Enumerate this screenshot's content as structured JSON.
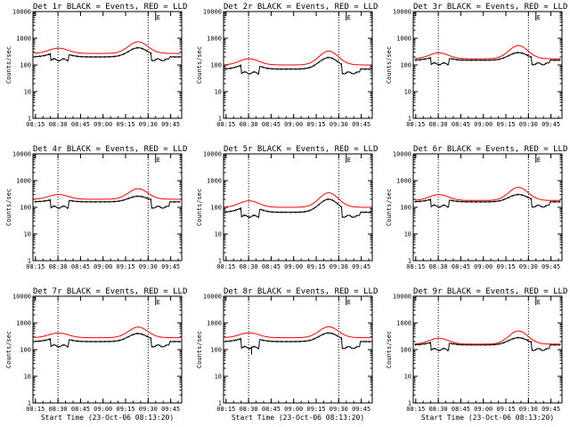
{
  "figure": {
    "background": "#ffffff",
    "frame_color": "#000000"
  },
  "chart_data": [
    {
      "type": "line",
      "title": "Det 1r BLACK = Events, RED = LLD",
      "xlabel": "",
      "ylabel": "Counts/sec",
      "x_tick_labels": [
        "08:15",
        "08:30",
        "08:45",
        "09:00",
        "09:15",
        "09:30",
        "09:45"
      ],
      "x_range_minutes": [
        0,
        99
      ],
      "ylim": [
        1,
        10000
      ],
      "y_scale": "log",
      "y_tick_labels": [
        "1",
        "10",
        "100",
        "1000",
        "10000"
      ],
      "marker_label": "E",
      "dotted_lines_at": [
        "08:30",
        "09:30"
      ],
      "series": [
        {
          "color": "#000000",
          "profile": "events",
          "lo": 200,
          "hi": 440,
          "gaps": [
            [
              "08:25",
              "08:37"
            ],
            [
              "09:32",
              "09:44"
            ]
          ],
          "gap_value": 170
        },
        {
          "color": "#ff0000",
          "profile": "lld",
          "lo": 270,
          "hi": 740
        }
      ]
    },
    {
      "type": "line",
      "title": "Det 2r BLACK = Events, RED = LLD",
      "xlabel": "",
      "ylabel": "Counts/sec",
      "x_tick_labels": [
        "08:15",
        "08:30",
        "08:45",
        "09:00",
        "09:15",
        "09:30",
        "09:45"
      ],
      "x_range_minutes": [
        0,
        99
      ],
      "ylim": [
        1,
        10000
      ],
      "y_scale": "log",
      "y_tick_labels": [
        "1",
        "10",
        "100",
        "1000",
        "10000"
      ],
      "marker_label": "E",
      "dotted_lines_at": [
        "08:30",
        "09:30"
      ],
      "series": [
        {
          "color": "#000000",
          "profile": "events",
          "lo": 70,
          "hi": 190,
          "gaps": [
            [
              "08:25",
              "08:37"
            ],
            [
              "09:32",
              "09:44"
            ]
          ],
          "gap_value": 55
        },
        {
          "color": "#ff0000",
          "profile": "lld",
          "lo": 100,
          "hi": 330
        }
      ]
    },
    {
      "type": "line",
      "title": "Det 3r BLACK = Events, RED = LLD",
      "xlabel": "",
      "ylabel": "Counts/sec",
      "x_tick_labels": [
        "08:15",
        "08:30",
        "08:45",
        "09:00",
        "09:15",
        "09:30",
        "09:45"
      ],
      "x_range_minutes": [
        0,
        99
      ],
      "ylim": [
        1,
        10000
      ],
      "y_scale": "log",
      "y_tick_labels": [
        "1",
        "10",
        "100",
        "1000",
        "10000"
      ],
      "marker_label": "E",
      "dotted_lines_at": [
        "08:30",
        "09:30"
      ],
      "series": [
        {
          "color": "#000000",
          "profile": "events",
          "lo": 150,
          "hi": 290,
          "gaps": [
            [
              "08:25",
              "08:37"
            ],
            [
              "09:32",
              "09:44"
            ]
          ],
          "gap_value": 120
        },
        {
          "color": "#ff0000",
          "profile": "lld",
          "lo": 170,
          "hi": 530
        }
      ]
    },
    {
      "type": "line",
      "title": "Det 4r BLACK = Events, RED = LLD",
      "xlabel": "",
      "ylabel": "Counts/sec",
      "x_tick_labels": [
        "08:15",
        "08:30",
        "08:45",
        "09:00",
        "09:15",
        "09:30",
        "09:45"
      ],
      "x_range_minutes": [
        0,
        99
      ],
      "ylim": [
        1,
        10000
      ],
      "y_scale": "log",
      "y_tick_labels": [
        "1",
        "10",
        "100",
        "1000",
        "10000"
      ],
      "marker_label": "E",
      "dotted_lines_at": [
        "08:30",
        "09:30"
      ],
      "series": [
        {
          "color": "#000000",
          "profile": "events",
          "lo": 160,
          "hi": 260,
          "gaps": [
            [
              "08:25",
              "08:37"
            ],
            [
              "09:32",
              "09:44"
            ]
          ],
          "gap_value": 110
        },
        {
          "color": "#ff0000",
          "profile": "lld",
          "lo": 200,
          "hi": 500
        }
      ]
    },
    {
      "type": "line",
      "title": "Det 5r BLACK = Events, RED = LLD",
      "xlabel": "",
      "ylabel": "Counts/sec",
      "x_tick_labels": [
        "08:15",
        "08:30",
        "08:45",
        "09:00",
        "09:15",
        "09:30",
        "09:45"
      ],
      "x_range_minutes": [
        0,
        99
      ],
      "ylim": [
        1,
        10000
      ],
      "y_scale": "log",
      "y_tick_labels": [
        "1",
        "10",
        "100",
        "1000",
        "10000"
      ],
      "marker_label": "E",
      "dotted_lines_at": [
        "08:30",
        "09:30"
      ],
      "series": [
        {
          "color": "#000000",
          "profile": "events",
          "lo": 65,
          "hi": 200,
          "gaps": [
            [
              "08:25",
              "08:37"
            ],
            [
              "09:32",
              "09:44"
            ]
          ],
          "gap_value": 50
        },
        {
          "color": "#ff0000",
          "profile": "lld",
          "lo": 100,
          "hi": 350
        }
      ]
    },
    {
      "type": "line",
      "title": "Det 6r BLACK = Events, RED = LLD",
      "xlabel": "",
      "ylabel": "Counts/sec",
      "x_tick_labels": [
        "08:15",
        "08:30",
        "08:45",
        "09:00",
        "09:15",
        "09:30",
        "09:45"
      ],
      "x_range_minutes": [
        0,
        99
      ],
      "ylim": [
        1,
        10000
      ],
      "y_scale": "log",
      "y_tick_labels": [
        "1",
        "10",
        "100",
        "1000",
        "10000"
      ],
      "marker_label": "E",
      "dotted_lines_at": [
        "08:30",
        "09:30"
      ],
      "series": [
        {
          "color": "#000000",
          "profile": "events",
          "lo": 160,
          "hi": 300,
          "gaps": [
            [
              "08:25",
              "08:37"
            ],
            [
              "09:32",
              "09:44"
            ]
          ],
          "gap_value": 120
        },
        {
          "color": "#ff0000",
          "profile": "lld",
          "lo": 180,
          "hi": 560
        }
      ]
    },
    {
      "type": "line",
      "title": "Det 7r BLACK = Events, RED = LLD",
      "xlabel": "Start Time (23-Oct-06 08:13:20)",
      "ylabel": "Counts/sec",
      "x_tick_labels": [
        "08:15",
        "08:30",
        "08:45",
        "09:00",
        "09:15",
        "09:30",
        "09:45"
      ],
      "x_range_minutes": [
        0,
        99
      ],
      "ylim": [
        1,
        10000
      ],
      "y_scale": "log",
      "y_tick_labels": [
        "1",
        "10",
        "100",
        "1000",
        "10000"
      ],
      "marker_label": "E",
      "dotted_lines_at": [
        "08:30",
        "09:30"
      ],
      "series": [
        {
          "color": "#000000",
          "profile": "events",
          "lo": 200,
          "hi": 400,
          "gaps": [
            [
              "08:25",
              "08:37"
            ],
            [
              "09:32",
              "09:44"
            ]
          ],
          "gap_value": 150
        },
        {
          "color": "#ff0000",
          "profile": "lld",
          "lo": 280,
          "hi": 700
        }
      ]
    },
    {
      "type": "line",
      "title": "Det 8r BLACK = Events, RED = LLD",
      "xlabel": "Start Time (23-Oct-06 08:13:20)",
      "ylabel": "Counts/sec",
      "x_tick_labels": [
        "08:15",
        "08:30",
        "08:45",
        "09:00",
        "09:15",
        "09:30",
        "09:45"
      ],
      "x_range_minutes": [
        0,
        99
      ],
      "ylim": [
        1,
        10000
      ],
      "y_scale": "log",
      "y_tick_labels": [
        "1",
        "10",
        "100",
        "1000",
        "10000"
      ],
      "marker_label": "E",
      "dotted_lines_at": [
        "08:30",
        "09:30"
      ],
      "series": [
        {
          "color": "#000000",
          "profile": "events",
          "lo": 200,
          "hi": 420,
          "gaps": [
            [
              "08:25",
              "08:37"
            ],
            [
              "09:32",
              "09:44"
            ]
          ],
          "gap_value": 130,
          "spike": "08:32"
        },
        {
          "color": "#ff0000",
          "profile": "lld",
          "lo": 280,
          "hi": 720
        }
      ]
    },
    {
      "type": "line",
      "title": "Det 9r BLACK = Events, RED = LLD",
      "xlabel": "Start Time (23-Oct-06 08:13:20)",
      "ylabel": "Counts/sec",
      "x_tick_labels": [
        "08:15",
        "08:30",
        "08:45",
        "09:00",
        "09:15",
        "09:30",
        "09:45"
      ],
      "x_range_minutes": [
        0,
        99
      ],
      "ylim": [
        1,
        10000
      ],
      "y_scale": "log",
      "y_tick_labels": [
        "1",
        "10",
        "100",
        "1000",
        "10000"
      ],
      "marker_label": "E",
      "dotted_lines_at": [
        "08:30",
        "09:30"
      ],
      "series": [
        {
          "color": "#000000",
          "profile": "events",
          "lo": 150,
          "hi": 280,
          "gaps": [
            [
              "08:25",
              "08:37"
            ],
            [
              "09:32",
              "09:44"
            ]
          ],
          "gap_value": 110
        },
        {
          "color": "#ff0000",
          "profile": "lld",
          "lo": 160,
          "hi": 500
        }
      ]
    }
  ]
}
